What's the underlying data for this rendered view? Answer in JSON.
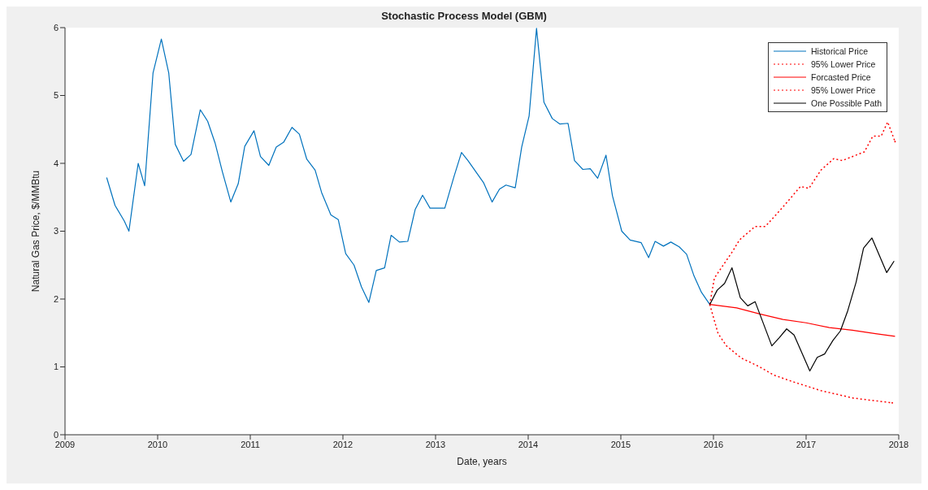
{
  "chart_data": {
    "type": "line",
    "title": "Stochastic Process Model (GBM)",
    "xlabel": "Date, years",
    "ylabel": "Natural Gas Price, $/MMBtu",
    "xlim": [
      2009,
      2018
    ],
    "xticks": [
      2009,
      2010,
      2011,
      2012,
      2013,
      2014,
      2015,
      2016,
      2017,
      2018
    ],
    "ylim": [
      0,
      6
    ],
    "yticks": [
      0,
      1,
      2,
      3,
      4,
      5,
      6
    ],
    "grid": false,
    "legend": "top right",
    "marker": "none",
    "series": [
      {
        "name": "Historical Price",
        "color": "#0072bd",
        "line_style": "solid",
        "x": [
          2009.45,
          2009.54,
          2009.64,
          2009.69,
          2009.79,
          2009.86,
          2009.95,
          2010.04,
          2010.12,
          2010.19,
          2010.28,
          2010.36,
          2010.46,
          2010.54,
          2010.62,
          2010.7,
          2010.79,
          2010.87,
          2010.94,
          2011.04,
          2011.11,
          2011.2,
          2011.28,
          2011.36,
          2011.45,
          2011.53,
          2011.61,
          2011.7,
          2011.77,
          2011.87,
          2011.95,
          2012.03,
          2012.12,
          2012.2,
          2012.28,
          2012.36,
          2012.45,
          2012.52,
          2012.61,
          2012.7,
          2012.78,
          2012.86,
          2012.94,
          2013.1,
          2013.2,
          2013.28,
          2013.35,
          2013.52,
          2013.61,
          2013.69,
          2013.76,
          2013.86,
          2013.93,
          2014.01,
          2014.09,
          2014.17,
          2014.26,
          2014.34,
          2014.43,
          2014.5,
          2014.59,
          2014.67,
          2014.75,
          2014.84,
          2014.91,
          2015.01,
          2015.1,
          2015.22,
          2015.3,
          2015.37,
          2015.46,
          2015.54,
          2015.63,
          2015.71,
          2015.79,
          2015.87,
          2015.96
        ],
        "values": [
          3.79,
          3.38,
          3.15,
          3.0,
          4.0,
          3.67,
          5.33,
          5.83,
          5.33,
          4.28,
          4.03,
          4.13,
          4.79,
          4.62,
          4.3,
          3.87,
          3.43,
          3.7,
          4.25,
          4.48,
          4.1,
          3.97,
          4.24,
          4.31,
          4.53,
          4.43,
          4.06,
          3.9,
          3.57,
          3.24,
          3.17,
          2.67,
          2.5,
          2.18,
          1.95,
          2.42,
          2.46,
          2.94,
          2.84,
          2.85,
          3.32,
          3.53,
          3.34,
          3.34,
          3.81,
          4.16,
          4.04,
          3.71,
          3.43,
          3.62,
          3.68,
          3.64,
          4.24,
          4.7,
          5.99,
          4.9,
          4.66,
          4.58,
          4.59,
          4.04,
          3.91,
          3.92,
          3.78,
          4.12,
          3.52,
          3.0,
          2.87,
          2.83,
          2.61,
          2.85,
          2.78,
          2.84,
          2.77,
          2.66,
          2.34,
          2.1,
          1.92
        ]
      },
      {
        "name": "95% Lower Price",
        "color": "#ff0000",
        "line_style": "dotted",
        "x": [
          2015.96,
          2016.01,
          2016.21,
          2016.28,
          2016.45,
          2016.56,
          2016.74,
          2016.94,
          2017.03,
          2017.16,
          2017.3,
          2017.39,
          2017.63,
          2017.72,
          2017.81,
          2017.88,
          2017.96
        ],
        "values": [
          1.92,
          2.31,
          2.71,
          2.87,
          3.07,
          3.07,
          3.34,
          3.66,
          3.63,
          3.9,
          4.07,
          4.04,
          4.17,
          4.4,
          4.4,
          4.61,
          4.32
        ]
      },
      {
        "name": "Forcasted Price",
        "color": "#ff0000",
        "line_style": "solid",
        "x": [
          2015.96,
          2016.25,
          2016.5,
          2016.75,
          2017.0,
          2017.25,
          2017.5,
          2017.75,
          2017.96
        ],
        "values": [
          1.92,
          1.87,
          1.78,
          1.7,
          1.65,
          1.58,
          1.54,
          1.49,
          1.45
        ]
      },
      {
        "name": "95% Lower Price",
        "color": "#ff0000",
        "line_style": "dotted",
        "x": [
          2015.96,
          2016.05,
          2016.14,
          2016.3,
          2016.5,
          2016.65,
          2016.86,
          2017.16,
          2017.51,
          2017.93
        ],
        "values": [
          1.92,
          1.49,
          1.31,
          1.13,
          1.0,
          0.88,
          0.78,
          0.65,
          0.54,
          0.47
        ]
      },
      {
        "name": "One Possible Path",
        "color": "#000000",
        "line_style": "solid",
        "x": [
          2015.96,
          2016.04,
          2016.12,
          2016.2,
          2016.29,
          2016.37,
          2016.45,
          2016.63,
          2016.71,
          2016.79,
          2016.87,
          2017.04,
          2017.12,
          2017.2,
          2017.29,
          2017.37,
          2017.45,
          2017.54,
          2017.62,
          2017.71,
          2017.87,
          2017.95
        ],
        "values": [
          1.92,
          2.13,
          2.23,
          2.46,
          2.02,
          1.9,
          1.96,
          1.31,
          1.43,
          1.56,
          1.47,
          0.94,
          1.14,
          1.19,
          1.39,
          1.53,
          1.83,
          2.25,
          2.75,
          2.9,
          2.39,
          2.56
        ]
      }
    ]
  }
}
